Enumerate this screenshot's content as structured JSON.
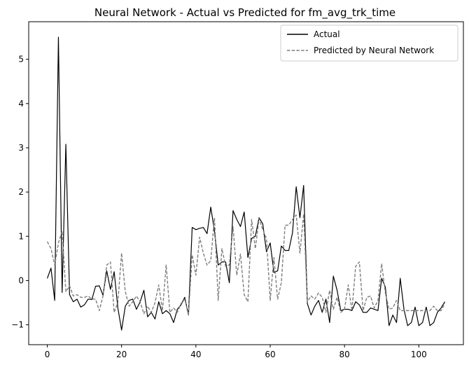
{
  "chart_data": {
    "type": "line",
    "title": "Neural Network - Actual vs Predicted for fm_avg_trk_time",
    "xlabel": "",
    "ylabel": "",
    "xlim": [
      -5,
      112
    ],
    "ylim": [
      -1.45,
      5.85
    ],
    "xticks": [
      0,
      20,
      40,
      60,
      80,
      100
    ],
    "yticks": [
      -1,
      0,
      1,
      2,
      3,
      4,
      5
    ],
    "grid": false,
    "legend": "top-right",
    "x": [
      0,
      1,
      2,
      3,
      4,
      5,
      6,
      7,
      8,
      9,
      10,
      11,
      12,
      13,
      14,
      15,
      16,
      17,
      18,
      19,
      20,
      21,
      22,
      23,
      24,
      25,
      26,
      27,
      28,
      29,
      30,
      31,
      32,
      33,
      34,
      35,
      36,
      37,
      38,
      39,
      40,
      41,
      42,
      43,
      44,
      45,
      46,
      47,
      48,
      49,
      50,
      51,
      52,
      53,
      54,
      55,
      56,
      57,
      58,
      59,
      60,
      61,
      62,
      63,
      64,
      65,
      66,
      67,
      68,
      69,
      70,
      71,
      72,
      73,
      74,
      75,
      76,
      77,
      78,
      79,
      80,
      81,
      82,
      83,
      84,
      85,
      86,
      87,
      88,
      89,
      90,
      91,
      92,
      93,
      94,
      95,
      96,
      97,
      98,
      99,
      100,
      101,
      102,
      103,
      104,
      105,
      106,
      107
    ],
    "series": [
      {
        "name": "Actual",
        "color": "#000000",
        "style": "solid",
        "values": [
          0.05,
          0.28,
          -0.45,
          5.5,
          -0.27,
          3.08,
          -0.32,
          -0.48,
          -0.42,
          -0.6,
          -0.55,
          -0.42,
          -0.43,
          -0.13,
          -0.12,
          -0.33,
          0.22,
          -0.2,
          0.2,
          -0.62,
          -1.12,
          -0.58,
          -0.45,
          -0.42,
          -0.65,
          -0.48,
          -0.22,
          -0.82,
          -0.72,
          -0.87,
          -0.48,
          -0.75,
          -0.68,
          -0.75,
          -0.95,
          -0.65,
          -0.55,
          -0.38,
          -0.78,
          1.2,
          1.15,
          1.18,
          1.2,
          1.06,
          1.66,
          1.12,
          0.35,
          0.42,
          0.42,
          -0.05,
          1.58,
          1.38,
          1.22,
          1.55,
          0.52,
          0.95,
          1.0,
          1.42,
          1.28,
          0.65,
          0.85,
          0.18,
          0.22,
          0.78,
          0.68,
          0.68,
          1.08,
          2.12,
          1.42,
          2.15,
          -0.52,
          -0.78,
          -0.58,
          -0.45,
          -0.72,
          -0.42,
          -0.95,
          0.1,
          -0.22,
          -0.68,
          -0.65,
          -0.65,
          -0.68,
          -0.48,
          -0.55,
          -0.72,
          -0.72,
          -0.62,
          -0.65,
          -0.68,
          0.05,
          -0.15,
          -1.02,
          -0.78,
          -0.95,
          0.05,
          -0.65,
          -1.02,
          -0.95,
          -0.6,
          -1.02,
          -0.95,
          -0.6,
          -1.02,
          -0.95,
          -0.72,
          -0.62,
          -0.48
        ]
      },
      {
        "name": "Predicted by Neural Network",
        "color": "#7f7f7f",
        "style": "dashed",
        "values": [
          0.88,
          0.72,
          0.35,
          0.85,
          1.12,
          -0.25,
          -0.12,
          -0.35,
          -0.32,
          -0.38,
          -0.38,
          -0.35,
          -0.42,
          -0.42,
          -0.68,
          -0.35,
          0.35,
          0.42,
          -0.72,
          -0.5,
          0.62,
          -0.25,
          -0.58,
          -0.48,
          -0.35,
          -0.48,
          -0.75,
          -0.58,
          -0.72,
          -0.5,
          -0.1,
          -0.68,
          0.35,
          -0.72,
          -0.62,
          -0.72,
          -0.52,
          -0.42,
          -0.78,
          0.58,
          0.12,
          0.98,
          0.62,
          0.35,
          0.45,
          1.42,
          -0.45,
          0.72,
          0.32,
          0.35,
          1.22,
          0.12,
          0.6,
          -0.32,
          -0.48,
          1.38,
          0.72,
          1.4,
          1.15,
          0.95,
          -0.45,
          0.52,
          -0.42,
          -0.05,
          1.25,
          1.25,
          1.38,
          1.48,
          0.62,
          1.5,
          -0.48,
          -0.35,
          -0.42,
          -0.28,
          -0.38,
          -0.72,
          -0.22,
          -0.65,
          -0.38,
          -0.72,
          -0.65,
          -0.1,
          -0.68,
          0.32,
          0.42,
          -0.68,
          -0.38,
          -0.35,
          -0.62,
          -0.45,
          0.38,
          -0.28,
          -0.65,
          -0.62,
          -0.45,
          -0.68,
          -0.68,
          -0.68,
          -0.68,
          -0.68,
          -0.68,
          -0.68,
          -0.68,
          -0.68,
          -0.58,
          -0.68,
          -0.68,
          -0.52
        ]
      }
    ]
  }
}
